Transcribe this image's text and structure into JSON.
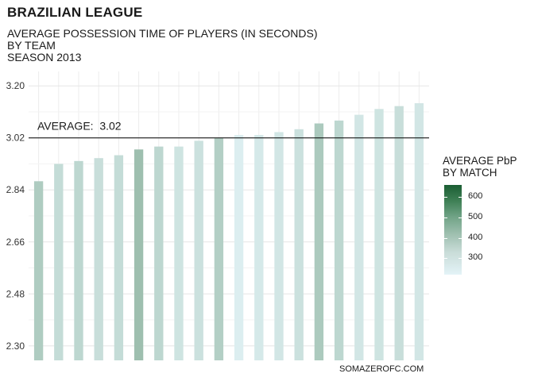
{
  "title": "BRAZILIAN LEAGUE",
  "subtitle_lines": [
    "AVERAGE POSSESSION TIME OF PLAYERS (IN SECONDS)",
    "BY TEAM",
    "SEASON 2013"
  ],
  "caption": "SOMAZEROFC.COM",
  "legend": {
    "title_lines": [
      "AVERAGE PbP",
      "BY MATCH"
    ],
    "ticks": [
      600,
      500,
      400,
      300
    ],
    "range": [
      220,
      660
    ],
    "colors": {
      "low": "#e3f3f7",
      "high": "#1b5e33"
    }
  },
  "chart_data": {
    "type": "bar",
    "title": "BRAZILIAN LEAGUE",
    "ylim": [
      2.25,
      3.25
    ],
    "yticks": [
      "2.30",
      "2.48",
      "2.66",
      "2.84",
      "3.02",
      "3.20"
    ],
    "grid": true,
    "reference_line": {
      "value": 3.02,
      "label": "AVERAGE:  3.02"
    },
    "values": [
      2.87,
      2.93,
      2.94,
      2.95,
      2.96,
      2.98,
      2.99,
      2.99,
      3.01,
      3.02,
      3.03,
      3.03,
      3.04,
      3.05,
      3.07,
      3.08,
      3.1,
      3.12,
      3.13,
      3.14
    ],
    "color_values": [
      370,
      310,
      330,
      300,
      310,
      420,
      330,
      280,
      290,
      360,
      240,
      260,
      270,
      290,
      380,
      330,
      270,
      280,
      300,
      270
    ]
  }
}
